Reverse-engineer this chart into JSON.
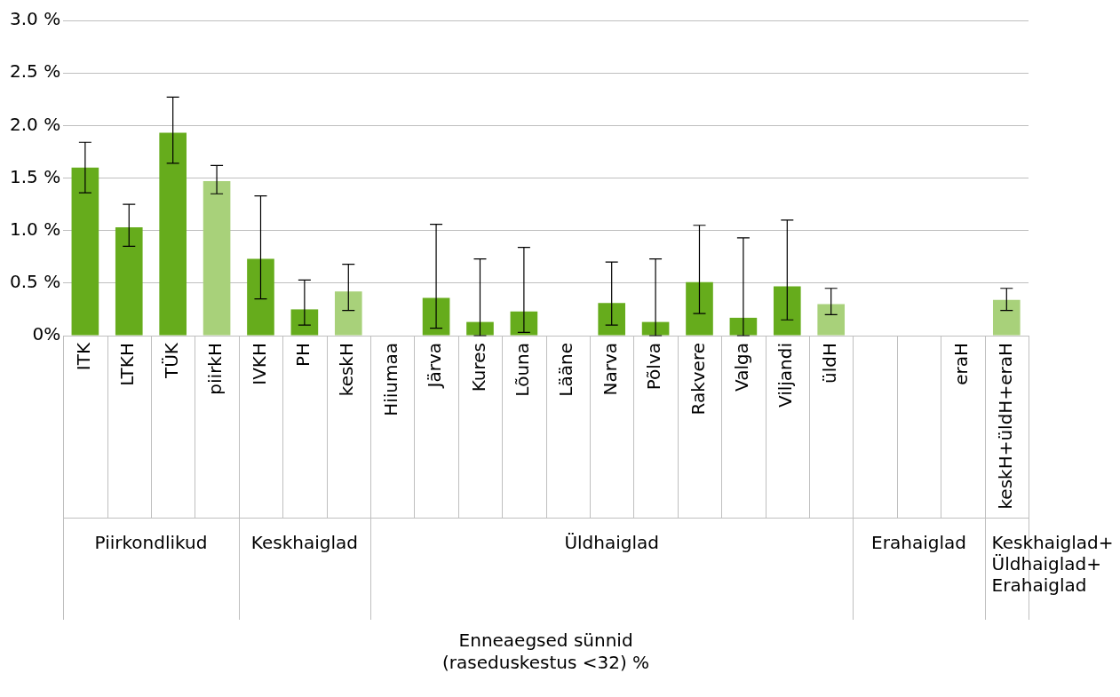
{
  "chart_data": {
    "type": "bar",
    "categories": [
      "ITK",
      "LTKH",
      "TÜK",
      "piirkH",
      "IVKH",
      "PH",
      "keskH",
      "Hiiumaa",
      "Järva",
      "Kures",
      "Lõuna",
      "Lääne",
      "Narva",
      "Põlva",
      "Rakvere",
      "Valga",
      "Viljandi",
      "üldH",
      null,
      null,
      "eraH",
      "keskH+üldH+eraH"
    ],
    "values": [
      1.6,
      1.03,
      1.93,
      1.47,
      0.73,
      0.25,
      0.42,
      0,
      0.36,
      0.13,
      0.23,
      0,
      0.31,
      0.13,
      0.51,
      0.17,
      0.47,
      0.3,
      0,
      0,
      0,
      0.34
    ],
    "errors": [
      [
        1.36,
        1.84
      ],
      [
        0.85,
        1.25
      ],
      [
        1.64,
        2.27
      ],
      [
        1.35,
        1.62
      ],
      [
        0.35,
        1.33
      ],
      [
        0.1,
        0.53
      ],
      [
        0.24,
        0.68
      ],
      null,
      [
        0.07,
        1.06
      ],
      [
        0,
        0.73
      ],
      [
        0.03,
        0.84
      ],
      null,
      [
        0.1,
        0.7
      ],
      [
        0,
        0.73
      ],
      [
        0.21,
        1.05
      ],
      [
        0,
        0.93
      ],
      [
        0.15,
        1.1
      ],
      [
        0.2,
        0.45
      ],
      null,
      null,
      null,
      [
        0.24,
        0.45
      ]
    ],
    "colors": [
      "#66ac1c",
      "#66ac1c",
      "#66ac1c",
      "#a8d17a",
      "#66ac1c",
      "#66ac1c",
      "#a8d17a",
      "#66ac1c",
      "#66ac1c",
      "#66ac1c",
      "#66ac1c",
      "#66ac1c",
      "#66ac1c",
      "#66ac1c",
      "#66ac1c",
      "#66ac1c",
      "#66ac1c",
      "#a8d17a",
      "#66ac1c",
      "#66ac1c",
      "#66ac1c",
      "#a8d17a"
    ],
    "annotations": [
      "Piirkondlikud",
      "Keskhaiglad",
      "Üldhaiglad",
      "Erahaiglad",
      "Keskhaiglad+\nÜldhaiglad+\nErahaiglad",
      "Enneaegsed sünnid\n(raseduskestus <32) %"
    ],
    "ylim": [
      0,
      3
    ],
    "yticks": [
      {
        "value": 0,
        "label": "0%"
      },
      {
        "value": 0.5,
        "label": "0.5 %"
      },
      {
        "value": 1,
        "label": "1.0 %"
      },
      {
        "value": 1.5,
        "label": "1.5 %"
      },
      {
        "value": 2,
        "label": "2.0 %"
      },
      {
        "value": 2.5,
        "label": "2.5 %"
      },
      {
        "value": 3,
        "label": "3.0 %"
      }
    ],
    "grid": "y",
    "legend": false
  }
}
